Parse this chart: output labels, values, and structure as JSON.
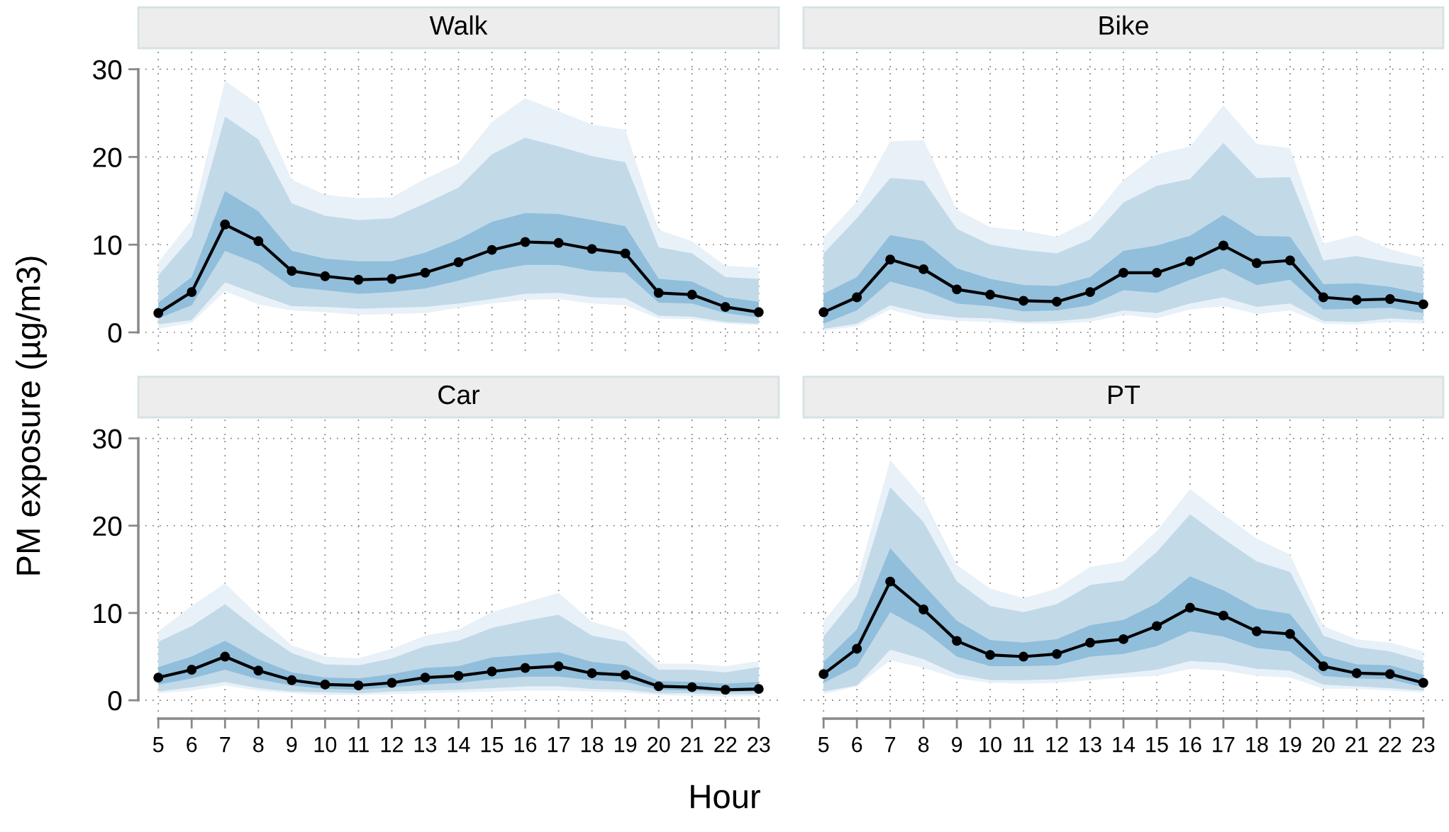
{
  "chart_data": [
    {
      "type": "line",
      "title": "Walk",
      "ylabel": "PM exposure (µg/m3)",
      "x": [
        5,
        6,
        7,
        8,
        9,
        10,
        11,
        12,
        13,
        14,
        15,
        16,
        17,
        18,
        19,
        20,
        21,
        22,
        23
      ],
      "xlim": [
        4.4,
        23.6
      ],
      "xticks": [
        5,
        6,
        7,
        8,
        9,
        10,
        11,
        12,
        13,
        14,
        15,
        16,
        17,
        18,
        19,
        20,
        21,
        22,
        23
      ],
      "ylim": [
        -2.1,
        32.4
      ],
      "yticks": [
        0,
        10,
        20,
        30
      ],
      "grid": true,
      "tick_labels": "y",
      "series": [
        {
          "type": "area",
          "color": "#e8f1f8",
          "values": [
            null,
            null,
            null,
            null,
            null,
            null,
            null,
            null,
            null,
            null,
            null,
            null,
            null,
            null,
            null,
            null,
            null,
            null,
            null
          ],
          "upper": [
            8.0,
            12.8,
            28.7,
            26.0,
            17.4,
            15.7,
            15.3,
            15.4,
            17.5,
            19.3,
            24.0,
            26.7,
            25.2,
            23.7,
            23.1,
            11.7,
            10.4,
            7.6,
            7.4
          ],
          "lower": [
            0.4,
            1.1,
            4.7,
            3.2,
            2.5,
            2.3,
            2.0,
            2.1,
            2.2,
            2.8,
            3.3,
            3.7,
            3.8,
            3.3,
            3.1,
            1.6,
            1.5,
            1.0,
            0.8
          ]
        },
        {
          "type": "area",
          "color": "#c2d9e8",
          "values": [
            null,
            null,
            null,
            null,
            null,
            null,
            null,
            null,
            null,
            null,
            null,
            null,
            null,
            null,
            null,
            null,
            null,
            null,
            null
          ],
          "upper": [
            6.5,
            10.9,
            24.6,
            22.0,
            14.7,
            13.3,
            12.8,
            13.0,
            14.7,
            16.5,
            20.3,
            22.2,
            21.2,
            20.1,
            19.4,
            9.7,
            9.0,
            6.3,
            6.1
          ],
          "lower": [
            0.9,
            1.4,
            5.7,
            4.3,
            3.0,
            2.9,
            2.7,
            2.8,
            2.9,
            3.3,
            3.8,
            4.4,
            4.5,
            4.0,
            3.9,
            1.9,
            1.8,
            1.2,
            1.0
          ]
        },
        {
          "type": "area",
          "color": "#90bedb",
          "values": [
            null,
            null,
            null,
            null,
            null,
            null,
            null,
            null,
            null,
            null,
            null,
            null,
            null,
            null,
            null,
            null,
            null,
            null,
            null
          ],
          "upper": [
            3.4,
            6.3,
            16.1,
            13.8,
            9.3,
            8.4,
            8.1,
            8.1,
            9.1,
            10.6,
            12.6,
            13.6,
            13.5,
            12.8,
            12.1,
            6.1,
            5.8,
            4.0,
            3.5
          ],
          "lower": [
            1.6,
            3.1,
            9.3,
            7.8,
            5.2,
            4.8,
            4.4,
            4.6,
            5.0,
            5.9,
            7.0,
            7.7,
            7.7,
            7.0,
            6.8,
            3.4,
            3.3,
            2.2,
            1.7
          ]
        },
        {
          "color": "#000000",
          "marker": "circle",
          "values": [
            2.2,
            4.6,
            12.3,
            10.4,
            7.0,
            6.4,
            6.0,
            6.1,
            6.8,
            8.0,
            9.4,
            10.3,
            10.2,
            9.5,
            9.0,
            4.5,
            4.3,
            2.9,
            2.3
          ]
        }
      ]
    },
    {
      "type": "line",
      "title": "Bike",
      "x": [
        5,
        6,
        7,
        8,
        9,
        10,
        11,
        12,
        13,
        14,
        15,
        16,
        17,
        18,
        19,
        20,
        21,
        22,
        23
      ],
      "xlim": [
        4.4,
        23.6
      ],
      "xticks": [
        5,
        6,
        7,
        8,
        9,
        10,
        11,
        12,
        13,
        14,
        15,
        16,
        17,
        18,
        19,
        20,
        21,
        22,
        23
      ],
      "ylim": [
        -2.1,
        32.4
      ],
      "yticks": [
        0,
        10,
        20,
        30
      ],
      "grid": true,
      "tick_labels": false,
      "series": [
        {
          "type": "area",
          "color": "#e8f1f8",
          "values": [
            null,
            null,
            null,
            null,
            null,
            null,
            null,
            null,
            null,
            null,
            null,
            null,
            null,
            null,
            null,
            null,
            null,
            null,
            null
          ],
          "upper": [
            10.8,
            14.9,
            21.8,
            21.9,
            14.0,
            12.0,
            11.6,
            10.9,
            12.8,
            17.4,
            20.3,
            21.2,
            25.9,
            21.5,
            21.0,
            10.1,
            11.1,
            9.5,
            8.5
          ],
          "lower": [
            0.2,
            0.7,
            2.6,
            1.6,
            1.3,
            1.2,
            1.0,
            1.0,
            1.2,
            2.0,
            1.6,
            2.6,
            3.0,
            2.1,
            2.5,
            1.0,
            0.9,
            1.2,
            1.0
          ]
        },
        {
          "type": "area",
          "color": "#c2d9e8",
          "values": [
            null,
            null,
            null,
            null,
            null,
            null,
            null,
            null,
            null,
            null,
            null,
            null,
            null,
            null,
            null,
            null,
            null,
            null,
            null
          ],
          "upper": [
            9.0,
            13.0,
            17.6,
            17.3,
            11.8,
            10.0,
            9.4,
            9.0,
            10.6,
            14.8,
            16.7,
            17.5,
            21.6,
            17.6,
            17.7,
            8.2,
            8.7,
            8.0,
            7.4
          ],
          "lower": [
            0.4,
            1.0,
            3.1,
            2.2,
            1.7,
            1.6,
            1.2,
            1.3,
            1.6,
            2.5,
            2.2,
            3.3,
            4.0,
            2.9,
            3.3,
            1.3,
            1.2,
            1.6,
            1.4
          ]
        },
        {
          "type": "area",
          "color": "#90bedb",
          "values": [
            null,
            null,
            null,
            null,
            null,
            null,
            null,
            null,
            null,
            null,
            null,
            null,
            null,
            null,
            null,
            null,
            null,
            null,
            null
          ],
          "upper": [
            4.4,
            6.3,
            11.1,
            10.4,
            7.3,
            6.1,
            5.4,
            5.3,
            6.3,
            9.3,
            9.9,
            11.0,
            13.4,
            11.0,
            10.9,
            5.5,
            5.6,
            5.2,
            4.4
          ],
          "lower": [
            1.0,
            2.5,
            5.8,
            4.8,
            3.3,
            3.0,
            2.4,
            2.5,
            3.1,
            4.8,
            4.5,
            6.0,
            7.3,
            5.4,
            6.0,
            2.6,
            2.7,
            2.8,
            2.2
          ]
        },
        {
          "color": "#000000",
          "marker": "circle",
          "values": [
            2.3,
            4.0,
            8.3,
            7.2,
            4.9,
            4.3,
            3.6,
            3.5,
            4.6,
            6.8,
            6.8,
            8.1,
            9.9,
            7.9,
            8.2,
            4.0,
            3.7,
            3.8,
            3.2
          ]
        }
      ]
    },
    {
      "type": "line",
      "title": "Car",
      "xlabel": "Hour",
      "x": [
        5,
        6,
        7,
        8,
        9,
        10,
        11,
        12,
        13,
        14,
        15,
        16,
        17,
        18,
        19,
        20,
        21,
        22,
        23
      ],
      "xlim": [
        4.4,
        23.6
      ],
      "xticks": [
        5,
        6,
        7,
        8,
        9,
        10,
        11,
        12,
        13,
        14,
        15,
        16,
        17,
        18,
        19,
        20,
        21,
        22,
        23
      ],
      "ylim": [
        -2.1,
        32.4
      ],
      "yticks": [
        0,
        10,
        20,
        30
      ],
      "grid": true,
      "series": [
        {
          "type": "area",
          "color": "#e8f1f8",
          "values": [
            null,
            null,
            null,
            null,
            null,
            null,
            null,
            null,
            null,
            null,
            null,
            null,
            null,
            null,
            null,
            null,
            null,
            null,
            null
          ],
          "upper": [
            7.9,
            10.8,
            13.4,
            9.7,
            6.3,
            5.0,
            4.8,
            5.9,
            7.4,
            8.1,
            10.1,
            11.2,
            12.3,
            9.0,
            7.9,
            4.2,
            4.2,
            3.9,
            4.5
          ],
          "lower": [
            0.8,
            1.1,
            1.7,
            1.1,
            0.8,
            0.6,
            0.6,
            0.7,
            0.8,
            0.9,
            1.0,
            1.1,
            1.1,
            1.0,
            0.9,
            0.6,
            0.5,
            0.4,
            0.5
          ]
        },
        {
          "type": "area",
          "color": "#c2d9e8",
          "values": [
            null,
            null,
            null,
            null,
            null,
            null,
            null,
            null,
            null,
            null,
            null,
            null,
            null,
            null,
            null,
            null,
            null,
            null,
            null
          ],
          "upper": [
            6.7,
            8.5,
            11.0,
            8.0,
            5.4,
            4.1,
            4.0,
            4.8,
            6.2,
            6.8,
            8.3,
            9.1,
            9.8,
            7.4,
            6.7,
            3.5,
            3.5,
            3.2,
            3.8
          ],
          "lower": [
            1.0,
            1.5,
            2.1,
            1.4,
            1.0,
            0.9,
            0.8,
            1.0,
            1.1,
            1.2,
            1.4,
            1.6,
            1.6,
            1.3,
            1.2,
            0.8,
            0.8,
            0.7,
            0.7
          ]
        },
        {
          "type": "area",
          "color": "#90bedb",
          "values": [
            null,
            null,
            null,
            null,
            null,
            null,
            null,
            null,
            null,
            null,
            null,
            null,
            null,
            null,
            null,
            null,
            null,
            null,
            null
          ],
          "upper": [
            3.8,
            5.0,
            6.8,
            4.7,
            3.2,
            2.6,
            2.5,
            3.0,
            3.7,
            3.9,
            4.9,
            5.2,
            5.5,
            4.4,
            4.0,
            2.2,
            2.1,
            1.9,
            2.1
          ],
          "lower": [
            1.8,
            2.5,
            3.5,
            2.4,
            1.7,
            1.3,
            1.2,
            1.5,
            1.8,
            2.0,
            2.4,
            2.7,
            2.7,
            2.3,
            2.1,
            1.2,
            1.1,
            1.0,
            1.0
          ]
        },
        {
          "color": "#000000",
          "marker": "circle",
          "values": [
            2.6,
            3.5,
            5.0,
            3.4,
            2.3,
            1.8,
            1.7,
            2.0,
            2.6,
            2.8,
            3.3,
            3.7,
            3.9,
            3.1,
            2.9,
            1.6,
            1.5,
            1.2,
            1.3
          ]
        }
      ]
    },
    {
      "type": "line",
      "title": "PT",
      "x": [
        5,
        6,
        7,
        8,
        9,
        10,
        11,
        12,
        13,
        14,
        15,
        16,
        17,
        18,
        19,
        20,
        21,
        22,
        23
      ],
      "xlim": [
        4.4,
        23.6
      ],
      "xticks": [
        5,
        6,
        7,
        8,
        9,
        10,
        11,
        12,
        13,
        14,
        15,
        16,
        17,
        18,
        19,
        20,
        21,
        22,
        23
      ],
      "ylim": [
        -2.1,
        32.4
      ],
      "yticks": [
        0,
        10,
        20,
        30
      ],
      "grid": true,
      "tick_labels": "x",
      "series": [
        {
          "type": "area",
          "color": "#e8f1f8",
          "values": [
            null,
            null,
            null,
            null,
            null,
            null,
            null,
            null,
            null,
            null,
            null,
            null,
            null,
            null,
            null,
            null,
            null,
            null,
            null
          ],
          "upper": [
            9.1,
            13.7,
            27.5,
            23.1,
            15.5,
            12.8,
            11.7,
            12.8,
            15.3,
            15.9,
            19.4,
            24.2,
            21.3,
            18.5,
            16.7,
            8.5,
            7.0,
            6.6,
            5.6
          ],
          "lower": [
            0.7,
            1.6,
            4.6,
            3.7,
            2.5,
            2.0,
            1.9,
            2.0,
            2.3,
            2.6,
            2.8,
            3.6,
            3.4,
            2.8,
            2.6,
            1.3,
            1.3,
            1.1,
            0.9
          ]
        },
        {
          "type": "area",
          "color": "#c2d9e8",
          "values": [
            null,
            null,
            null,
            null,
            null,
            null,
            null,
            null,
            null,
            null,
            null,
            null,
            null,
            null,
            null,
            null,
            null,
            null,
            null
          ],
          "upper": [
            7.3,
            12.0,
            24.4,
            20.4,
            13.6,
            10.8,
            10.1,
            11.0,
            13.2,
            13.7,
            17.0,
            21.3,
            18.5,
            15.9,
            14.7,
            7.4,
            6.1,
            5.6,
            4.5
          ],
          "lower": [
            1.0,
            1.7,
            5.8,
            4.7,
            3.0,
            2.3,
            2.3,
            2.4,
            2.8,
            3.1,
            3.5,
            4.5,
            4.3,
            3.6,
            3.4,
            1.8,
            1.6,
            1.4,
            1.1
          ]
        },
        {
          "type": "area",
          "color": "#90bedb",
          "values": [
            null,
            null,
            null,
            null,
            null,
            null,
            null,
            null,
            null,
            null,
            null,
            null,
            null,
            null,
            null,
            null,
            null,
            null,
            null
          ],
          "upper": [
            4.4,
            8.1,
            17.4,
            13.2,
            9.1,
            6.9,
            6.6,
            7.0,
            8.6,
            9.2,
            11.1,
            14.2,
            12.6,
            10.5,
            9.9,
            5.1,
            4.1,
            4.0,
            2.9
          ],
          "lower": [
            2.0,
            3.9,
            10.1,
            8.0,
            5.0,
            3.9,
            3.9,
            4.0,
            5.0,
            5.3,
            6.2,
            7.9,
            7.3,
            6.0,
            5.6,
            2.8,
            2.5,
            2.4,
            1.5
          ]
        },
        {
          "color": "#000000",
          "marker": "circle",
          "values": [
            3.0,
            5.9,
            13.6,
            10.4,
            6.8,
            5.2,
            5.0,
            5.3,
            6.6,
            7.0,
            8.5,
            10.6,
            9.7,
            7.9,
            7.6,
            3.9,
            3.1,
            3.0,
            2.0
          ]
        }
      ]
    }
  ]
}
